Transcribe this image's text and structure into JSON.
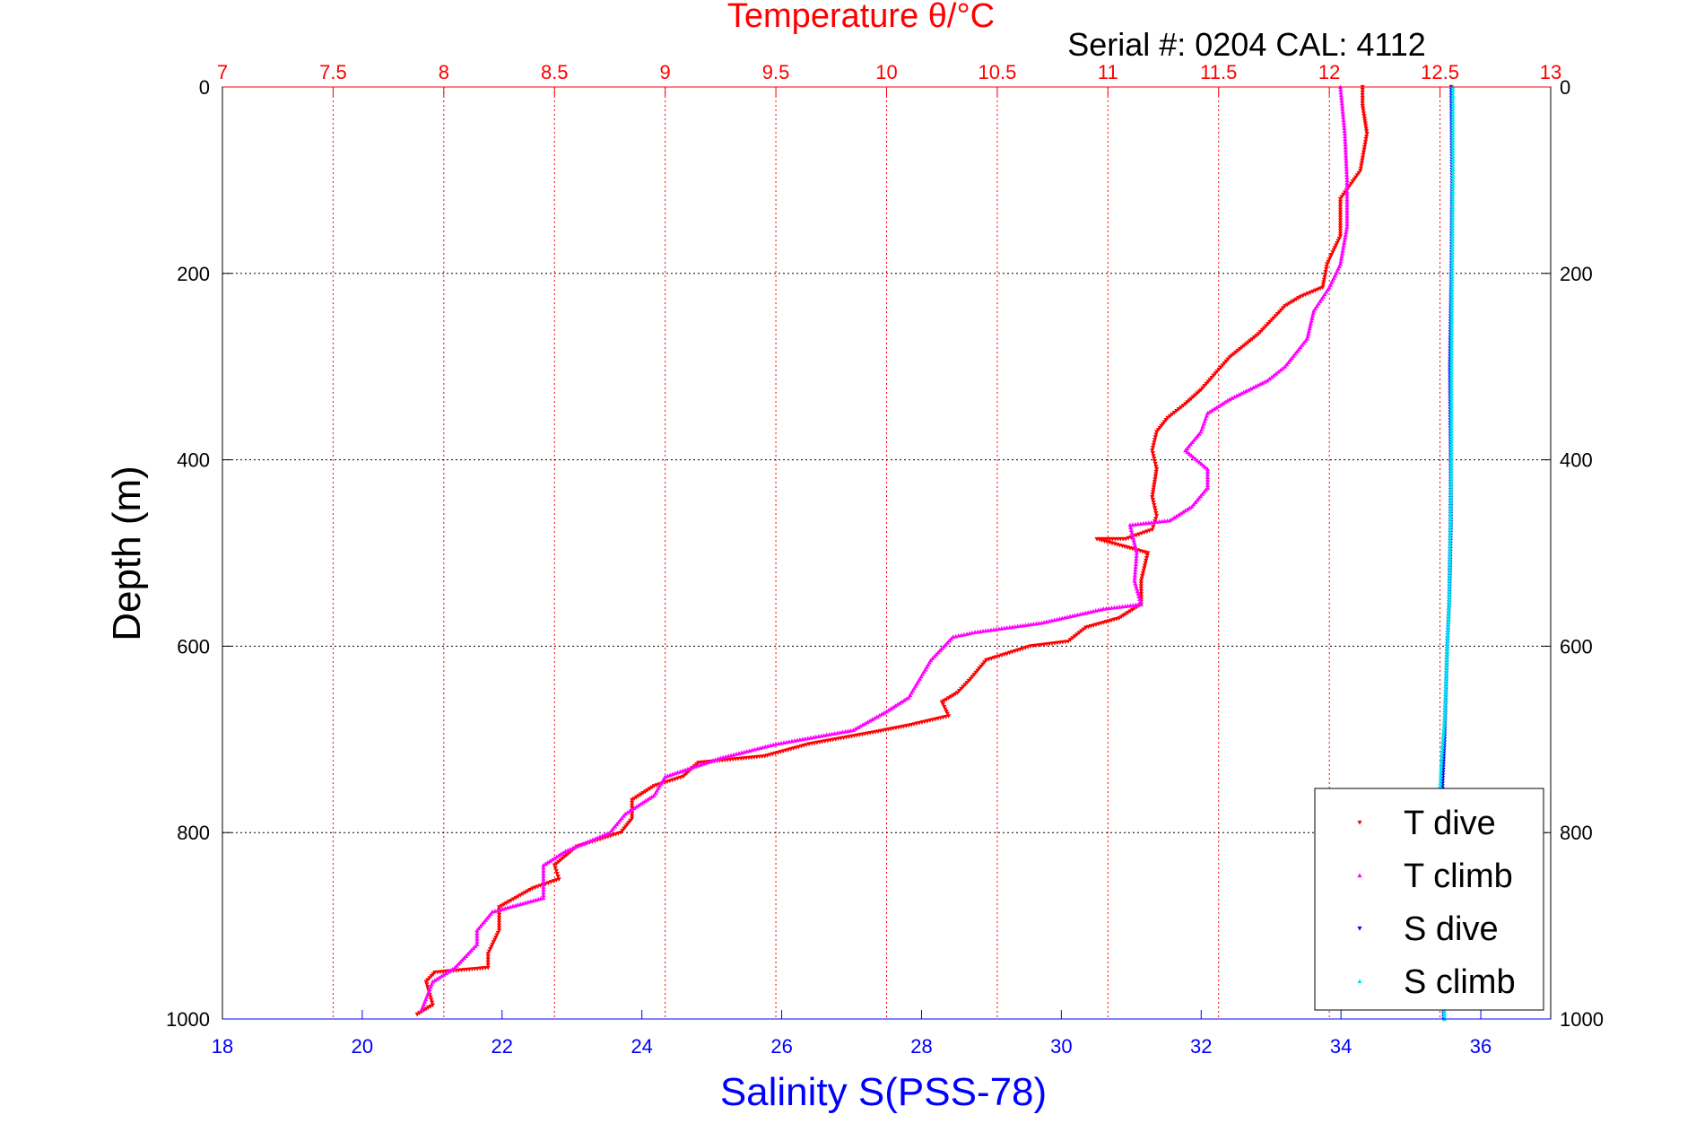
{
  "figure": {
    "title": "Temperature θ/°C",
    "subtitle": "Serial #: 0204  CAL: 4112"
  },
  "chart_data": {
    "type": "scatter",
    "ylabel": "Depth (m)",
    "ylim": [
      1000,
      0
    ],
    "y_inverted": true,
    "yticks": [
      0,
      200,
      400,
      600,
      800,
      1000
    ],
    "top_axis": {
      "label": "Temperature θ/°C",
      "lim": [
        7,
        13
      ],
      "ticks": [
        "7",
        "7.5",
        "8",
        "8.5",
        "9",
        "9.5",
        "10",
        "10.5",
        "11",
        "11.5",
        "12",
        "12.5",
        "13"
      ],
      "color": "#ff0000",
      "grid": "dotted"
    },
    "bottom_axis": {
      "label": "Salinity S(PSS-78)",
      "lim": [
        18,
        37
      ],
      "ticks": [
        "18",
        "20",
        "22",
        "24",
        "26",
        "28",
        "30",
        "32",
        "34",
        "36"
      ],
      "color": "#0000ff"
    },
    "legend": {
      "placement": "bottom-right"
    },
    "series": [
      {
        "name": "T dive",
        "axis": "top",
        "color": "#ff0000",
        "marker": "triangle-down",
        "points": [
          [
            12.15,
            0
          ],
          [
            12.15,
            20
          ],
          [
            12.17,
            50
          ],
          [
            12.14,
            90
          ],
          [
            12.05,
            120
          ],
          [
            12.05,
            160
          ],
          [
            11.99,
            190
          ],
          [
            11.97,
            215
          ],
          [
            11.87,
            225
          ],
          [
            11.8,
            235
          ],
          [
            11.68,
            265
          ],
          [
            11.55,
            290
          ],
          [
            11.42,
            325
          ],
          [
            11.35,
            340
          ],
          [
            11.27,
            355
          ],
          [
            11.22,
            370
          ],
          [
            11.2,
            390
          ],
          [
            11.22,
            410
          ],
          [
            11.2,
            440
          ],
          [
            11.22,
            460
          ],
          [
            11.2,
            475
          ],
          [
            11.08,
            485
          ],
          [
            10.95,
            485
          ],
          [
            11.18,
            500
          ],
          [
            11.15,
            530
          ],
          [
            11.15,
            555
          ],
          [
            11.05,
            570
          ],
          [
            10.9,
            580
          ],
          [
            10.82,
            595
          ],
          [
            10.65,
            600
          ],
          [
            10.45,
            615
          ],
          [
            10.38,
            635
          ],
          [
            10.32,
            650
          ],
          [
            10.25,
            660
          ],
          [
            10.28,
            675
          ],
          [
            10.1,
            685
          ],
          [
            9.95,
            692
          ],
          [
            9.65,
            705
          ],
          [
            9.45,
            718
          ],
          [
            9.15,
            725
          ],
          [
            9.08,
            740
          ],
          [
            8.95,
            750
          ],
          [
            8.85,
            765
          ],
          [
            8.85,
            785
          ],
          [
            8.8,
            800
          ],
          [
            8.6,
            815
          ],
          [
            8.5,
            835
          ],
          [
            8.52,
            850
          ],
          [
            8.4,
            860
          ],
          [
            8.25,
            880
          ],
          [
            8.25,
            905
          ],
          [
            8.2,
            930
          ],
          [
            8.2,
            945
          ],
          [
            7.96,
            950
          ],
          [
            7.92,
            960
          ],
          [
            7.95,
            985
          ],
          [
            7.88,
            995
          ]
        ]
      },
      {
        "name": "T climb",
        "axis": "top",
        "color": "#ff00ff",
        "marker": "triangle-up",
        "points": [
          [
            12.05,
            0
          ],
          [
            12.07,
            50
          ],
          [
            12.08,
            100
          ],
          [
            12.08,
            150
          ],
          [
            12.05,
            190
          ],
          [
            12.0,
            215
          ],
          [
            11.93,
            240
          ],
          [
            11.9,
            270
          ],
          [
            11.8,
            300
          ],
          [
            11.72,
            315
          ],
          [
            11.55,
            335
          ],
          [
            11.45,
            350
          ],
          [
            11.42,
            370
          ],
          [
            11.35,
            390
          ],
          [
            11.45,
            410
          ],
          [
            11.45,
            430
          ],
          [
            11.38,
            450
          ],
          [
            11.28,
            465
          ],
          [
            11.1,
            470
          ],
          [
            11.13,
            500
          ],
          [
            11.12,
            530
          ],
          [
            11.15,
            555
          ],
          [
            10.98,
            560
          ],
          [
            10.7,
            575
          ],
          [
            10.4,
            585
          ],
          [
            10.3,
            590
          ],
          [
            10.2,
            615
          ],
          [
            10.15,
            635
          ],
          [
            10.1,
            655
          ],
          [
            10.0,
            670
          ],
          [
            9.85,
            690
          ],
          [
            9.5,
            705
          ],
          [
            9.25,
            720
          ],
          [
            9.0,
            740
          ],
          [
            8.95,
            760
          ],
          [
            8.82,
            780
          ],
          [
            8.75,
            800
          ],
          [
            8.55,
            820
          ],
          [
            8.45,
            835
          ],
          [
            8.45,
            870
          ],
          [
            8.22,
            885
          ],
          [
            8.15,
            905
          ],
          [
            8.15,
            920
          ],
          [
            8.05,
            945
          ],
          [
            7.95,
            960
          ],
          [
            7.9,
            990
          ]
        ]
      },
      {
        "name": "S dive",
        "axis": "bottom",
        "color": "#0000ff",
        "marker": "triangle-down",
        "points": [
          [
            35.58,
            0
          ],
          [
            35.59,
            100
          ],
          [
            35.58,
            200
          ],
          [
            35.56,
            300
          ],
          [
            35.57,
            400
          ],
          [
            35.57,
            470
          ],
          [
            35.55,
            550
          ],
          [
            35.52,
            600
          ],
          [
            35.48,
            700
          ],
          [
            35.45,
            750
          ],
          [
            35.45,
            850
          ],
          [
            35.46,
            950
          ],
          [
            35.47,
            1000
          ]
        ]
      },
      {
        "name": "S climb",
        "axis": "bottom",
        "color": "#00e5ee",
        "marker": "triangle-up",
        "points": [
          [
            35.6,
            0
          ],
          [
            35.6,
            100
          ],
          [
            35.59,
            200
          ],
          [
            35.58,
            300
          ],
          [
            35.58,
            400
          ],
          [
            35.56,
            500
          ],
          [
            35.55,
            550
          ],
          [
            35.52,
            600
          ],
          [
            35.48,
            680
          ],
          [
            35.44,
            720
          ],
          [
            35.42,
            750
          ],
          [
            35.43,
            850
          ],
          [
            35.46,
            950
          ],
          [
            35.48,
            1000
          ]
        ]
      }
    ]
  }
}
